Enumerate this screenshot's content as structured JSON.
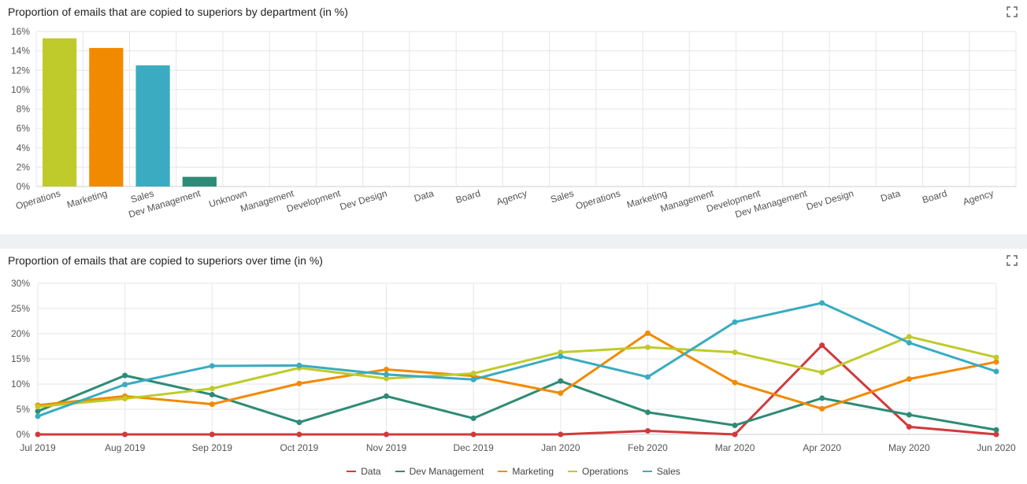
{
  "icons": {
    "expand": "expand-icon"
  },
  "colors": {
    "Data": "#d13a3c",
    "Dev Management": "#2e8b75",
    "Marketing": "#f28a00",
    "Operations": "#bfcb2b",
    "Sales": "#3aabc1",
    "grid": "#e6e6e6",
    "axis": "#cccccc"
  },
  "chart_data": [
    {
      "type": "bar",
      "title": "Proportion of emails that are copied to superiors by department (in %)",
      "xlabel": "",
      "ylabel": "",
      "ylim": [
        0,
        16
      ],
      "yticks": [
        "0%",
        "2%",
        "4%",
        "6%",
        "8%",
        "10%",
        "12%",
        "14%",
        "16%"
      ],
      "categories": [
        "Operations",
        "Marketing",
        "Sales",
        "Dev Management",
        "Unknown",
        "Management",
        "Development",
        "Dev Design",
        "Data",
        "Board",
        "Agency",
        "Sales",
        "Operations",
        "Marketing",
        "Management",
        "Development",
        "Dev Management",
        "Dev Design",
        "Data",
        "Board",
        "Agency"
      ],
      "values": [
        15.3,
        14.3,
        12.5,
        1.0,
        0,
        0,
        0,
        0,
        0,
        0,
        0,
        0,
        0,
        0,
        0,
        0,
        0,
        0,
        0,
        0,
        0
      ],
      "bar_colors": [
        "#bfcb2b",
        "#f28a00",
        "#3aabc1",
        "#2e8b75"
      ],
      "grid": true
    },
    {
      "type": "line",
      "title": "Proportion of emails that are copied to superiors over time (in %)",
      "xlabel": "",
      "ylabel": "",
      "ylim": [
        0,
        30
      ],
      "yticks": [
        "0%",
        "5%",
        "10%",
        "15%",
        "20%",
        "25%",
        "30%"
      ],
      "categories": [
        "Jul 2019",
        "Aug 2019",
        "Sep 2019",
        "Oct 2019",
        "Nov 2019",
        "Dec 2019",
        "Jan 2020",
        "Feb 2020",
        "Mar 2020",
        "Apr 2020",
        "May 2020",
        "Jun 2020"
      ],
      "series": [
        {
          "name": "Data",
          "values": [
            0,
            0,
            0,
            0,
            0,
            0,
            0,
            0.7,
            0,
            17.7,
            1.5,
            0
          ]
        },
        {
          "name": "Dev Management",
          "values": [
            4.6,
            11.7,
            7.9,
            2.4,
            7.6,
            3.2,
            10.6,
            4.4,
            1.8,
            7.2,
            3.9,
            0.9
          ]
        },
        {
          "name": "Marketing",
          "values": [
            5.8,
            7.6,
            6.0,
            10.1,
            12.9,
            11.6,
            8.2,
            20.1,
            10.3,
            5.1,
            11.0,
            14.4
          ]
        },
        {
          "name": "Operations",
          "values": [
            5.5,
            7.1,
            9.1,
            13.2,
            11.1,
            12.1,
            16.3,
            17.3,
            16.3,
            12.3,
            19.4,
            15.3
          ]
        },
        {
          "name": "Sales",
          "values": [
            3.6,
            9.9,
            13.6,
            13.7,
            11.9,
            10.9,
            15.5,
            11.4,
            22.3,
            26.1,
            18.2,
            12.5
          ]
        }
      ],
      "legend": "bottom-center",
      "grid": true
    }
  ]
}
